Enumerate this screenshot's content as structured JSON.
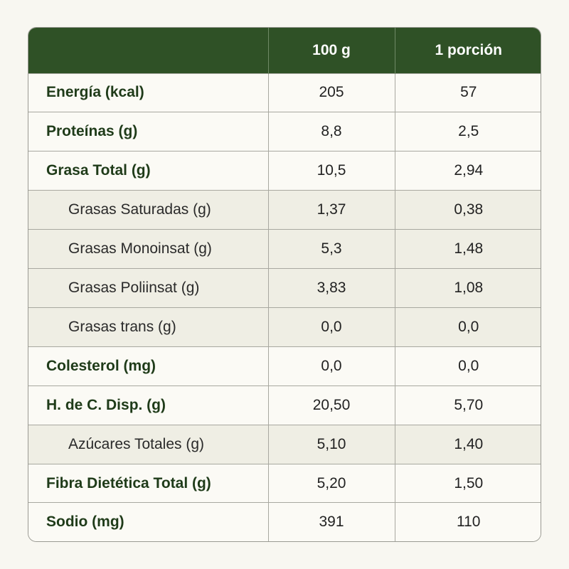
{
  "header": {
    "col_label": "",
    "col_100g": "100 g",
    "col_portion": "1 porción"
  },
  "rows": [
    {
      "label": "Energía (kcal)",
      "per_100g": "205",
      "per_portion": "57",
      "sub": false
    },
    {
      "label": "Proteínas (g)",
      "per_100g": "8,8",
      "per_portion": "2,5",
      "sub": false
    },
    {
      "label": "Grasa Total (g)",
      "per_100g": "10,5",
      "per_portion": "2,94",
      "sub": false
    },
    {
      "label": "Grasas Saturadas (g)",
      "per_100g": "1,37",
      "per_portion": "0,38",
      "sub": true
    },
    {
      "label": "Grasas Monoinsat (g)",
      "per_100g": "5,3",
      "per_portion": "1,48",
      "sub": true
    },
    {
      "label": "Grasas Poliinsat (g)",
      "per_100g": "3,83",
      "per_portion": "1,08",
      "sub": true
    },
    {
      "label": "Grasas trans (g)",
      "per_100g": "0,0",
      "per_portion": "0,0",
      "sub": true
    },
    {
      "label": "Colesterol (mg)",
      "per_100g": "0,0",
      "per_portion": "0,0",
      "sub": false
    },
    {
      "label": "H. de C. Disp. (g)",
      "per_100g": "20,50",
      "per_portion": "5,70",
      "sub": false
    },
    {
      "label": "Azúcares Totales (g)",
      "per_100g": "5,10",
      "per_portion": "1,40",
      "sub": true
    },
    {
      "label": "Fibra Dietética Total (g)",
      "per_100g": "5,20",
      "per_portion": "1,50",
      "sub": false
    },
    {
      "label": "Sodio (mg)",
      "per_100g": "391",
      "per_portion": "110",
      "sub": false
    }
  ],
  "colors": {
    "header_bg": "#2f5126",
    "header_text": "#ffffff",
    "label_text": "#1f3b19",
    "sub_row_bg": "#efeee4"
  }
}
